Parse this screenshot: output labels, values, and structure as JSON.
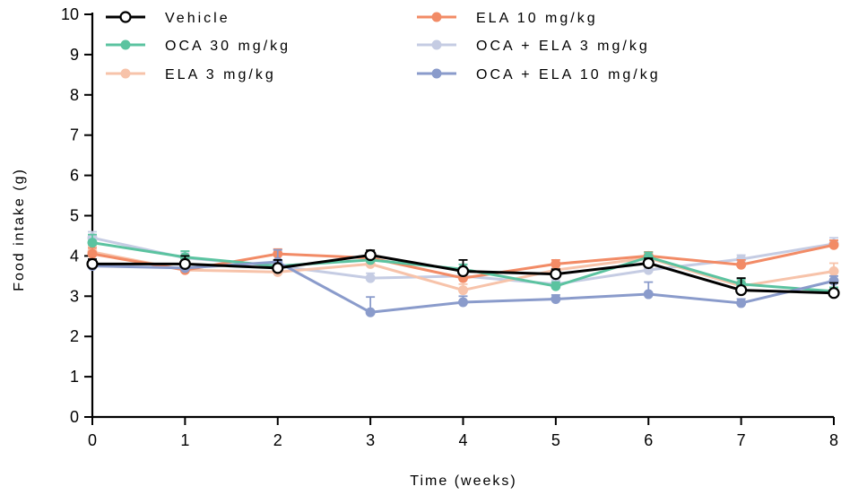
{
  "chart_data": {
    "type": "line",
    "title": "",
    "xlabel": "Time (weeks)",
    "ylabel": "Food intake (g)",
    "xlim": [
      0,
      8
    ],
    "ylim": [
      0,
      10
    ],
    "x": [
      0,
      1,
      2,
      3,
      4,
      5,
      6,
      7,
      8
    ],
    "x_ticks": [
      "0",
      "1",
      "2",
      "3",
      "4",
      "5",
      "6",
      "7",
      "8"
    ],
    "y_ticks": [
      "0",
      "1",
      "2",
      "3",
      "4",
      "5",
      "6",
      "7",
      "8",
      "9",
      "10"
    ],
    "grid": false,
    "legend_position": "top",
    "series": [
      {
        "name": "OCA + ELA 3 mg/kg",
        "color": "#c5cce3",
        "marker": "filled",
        "values": [
          4.45,
          3.95,
          3.75,
          3.45,
          3.5,
          3.3,
          3.65,
          3.92,
          4.3
        ],
        "errors": [
          0.15,
          0.12,
          0.1,
          0.12,
          0.15,
          0.1,
          0.12,
          0.1,
          0.15
        ]
      },
      {
        "name": "ELA 3 mg/kg",
        "color": "#f7c3aa",
        "marker": "filled",
        "values": [
          4.1,
          3.65,
          3.6,
          3.8,
          3.15,
          3.65,
          3.95,
          3.25,
          3.62
        ],
        "errors": [
          0.15,
          0.15,
          0.1,
          0.15,
          0.15,
          0.1,
          0.1,
          0.12,
          0.2
        ]
      },
      {
        "name": "ELA 10 mg/kg",
        "color": "#f28b66",
        "marker": "filled",
        "values": [
          4.05,
          3.65,
          4.05,
          3.95,
          3.45,
          3.8,
          4.0,
          3.78,
          4.27
        ],
        "errors": [
          0.15,
          0.25,
          0.12,
          0.12,
          0.15,
          0.1,
          0.1,
          0.12,
          0.12
        ]
      },
      {
        "name": "OCA 30 mg/kg",
        "color": "#5bc3a0",
        "marker": "filled",
        "values": [
          4.33,
          3.97,
          3.75,
          3.9,
          3.67,
          3.25,
          3.97,
          3.3,
          3.12
        ],
        "errors": [
          0.2,
          0.15,
          0.12,
          0.12,
          0.12,
          0.1,
          0.12,
          0.12,
          0.1
        ]
      },
      {
        "name": "OCA + ELA 10 mg/kg",
        "color": "#8a9bcb",
        "marker": "filled",
        "values": [
          3.75,
          3.7,
          3.85,
          2.6,
          2.85,
          2.93,
          3.05,
          2.83,
          3.38
        ],
        "errors": [
          0.12,
          0.12,
          0.3,
          0.38,
          0.15,
          0.1,
          0.3,
          0.1,
          0.12
        ]
      },
      {
        "name": "Vehicle",
        "color": "#000000",
        "marker": "open",
        "values": [
          3.8,
          3.8,
          3.7,
          4.02,
          3.62,
          3.55,
          3.82,
          3.15,
          3.08
        ],
        "errors": [
          0.12,
          0.2,
          0.2,
          0.12,
          0.28,
          0.12,
          0.12,
          0.3,
          0.25
        ]
      }
    ],
    "legend_order": [
      {
        "name": "Vehicle",
        "color": "#000000",
        "marker": "open"
      },
      {
        "name": "OCA 30 mg/kg",
        "color": "#5bc3a0",
        "marker": "filled"
      },
      {
        "name": "ELA 3 mg/kg",
        "color": "#f7c3aa",
        "marker": "filled"
      },
      {
        "name": "ELA 10 mg/kg",
        "color": "#f28b66",
        "marker": "filled"
      },
      {
        "name": "OCA + ELA 3 mg/kg",
        "color": "#c5cce3",
        "marker": "filled"
      },
      {
        "name": "OCA + ELA 10 mg/kg",
        "color": "#8a9bcb",
        "marker": "filled"
      }
    ]
  }
}
